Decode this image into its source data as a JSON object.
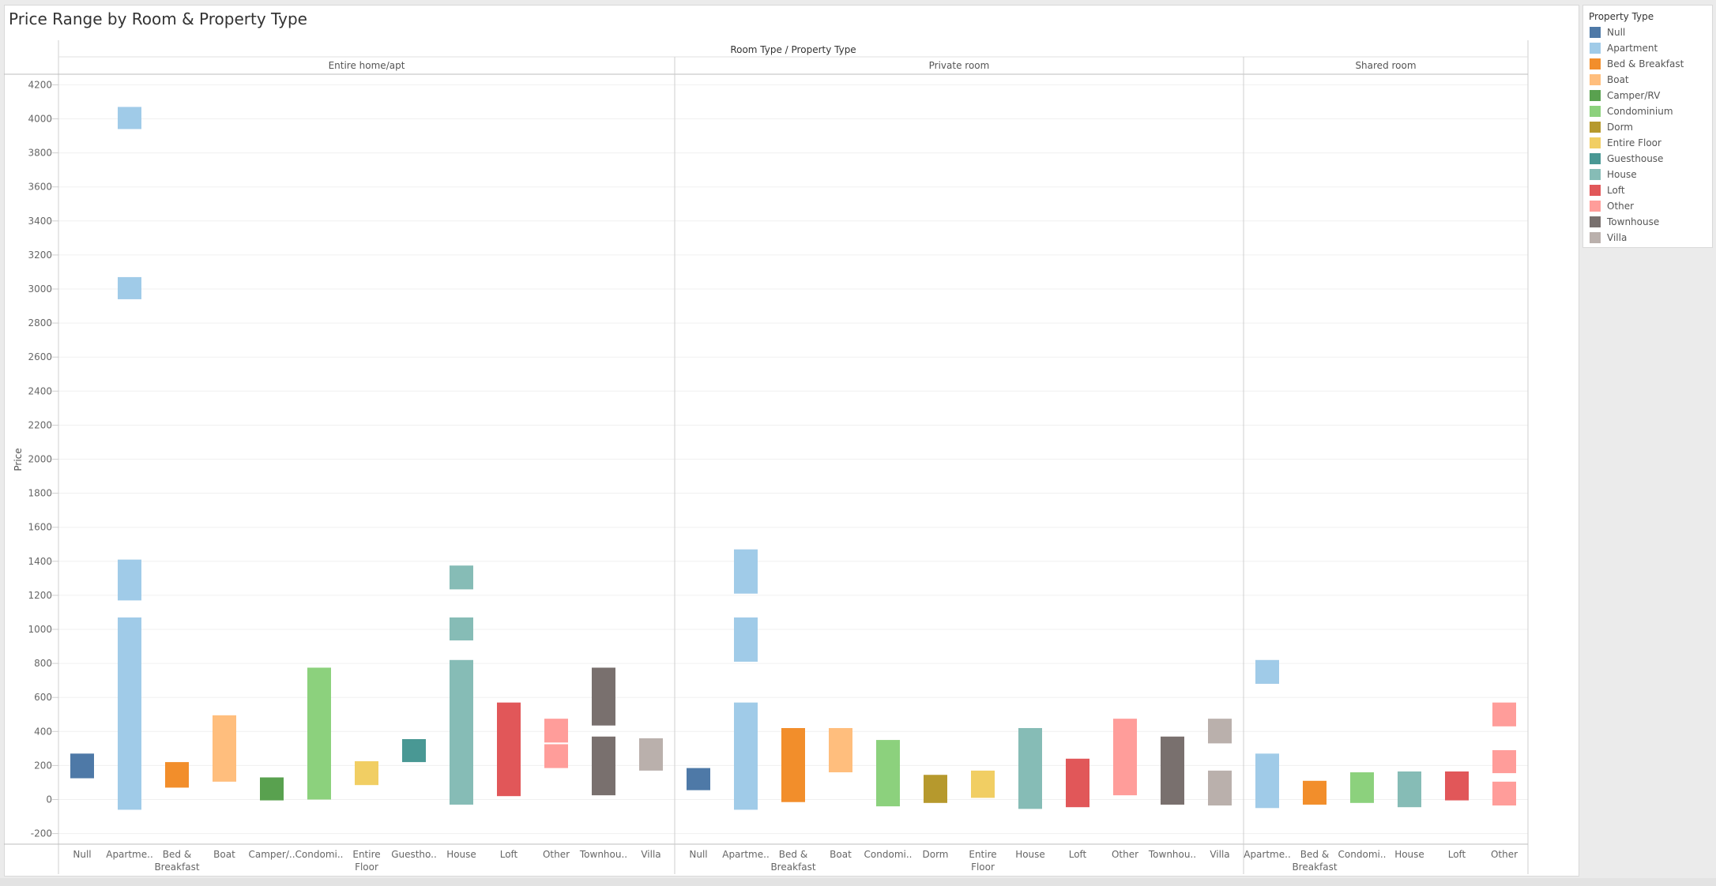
{
  "title": "Price Range by Room & Property Type",
  "legend": {
    "title": "Property Type",
    "items": [
      {
        "label": "Null",
        "color": "#4e79a7"
      },
      {
        "label": "Apartment",
        "color": "#a0cbe8"
      },
      {
        "label": "Bed & Breakfast",
        "color": "#f28e2b"
      },
      {
        "label": "Boat",
        "color": "#ffbe7d"
      },
      {
        "label": "Camper/RV",
        "color": "#59a14f"
      },
      {
        "label": "Condominium",
        "color": "#8cd17d"
      },
      {
        "label": "Dorm",
        "color": "#b6992d"
      },
      {
        "label": "Entire Floor",
        "color": "#f1ce63"
      },
      {
        "label": "Guesthouse",
        "color": "#499894"
      },
      {
        "label": "House",
        "color": "#86bcb6"
      },
      {
        "label": "Loft",
        "color": "#e15759"
      },
      {
        "label": "Other",
        "color": "#ff9d9a"
      },
      {
        "label": "Townhouse",
        "color": "#79706e"
      },
      {
        "label": "Villa",
        "color": "#bab0ac"
      }
    ]
  },
  "chart_data": {
    "type": "bar",
    "title": "Price Range by Room & Property Type",
    "header_title": "Room Type / Property Type",
    "ylabel": "Price",
    "ylim": [
      -250,
      4300
    ],
    "yticks": [
      -200,
      0,
      200,
      400,
      600,
      800,
      1000,
      1200,
      1400,
      1600,
      1800,
      2000,
      2200,
      2400,
      2600,
      2800,
      3000,
      3200,
      3400,
      3600,
      3800,
      4000,
      4200
    ],
    "grid": true,
    "legend_position": "right",
    "panels": [
      {
        "room_type": "Entire home/apt",
        "categories": [
          {
            "label": "Null",
            "ranges": [
              [
                125,
                270
              ]
            ]
          },
          {
            "label": "Apartme..",
            "ranges": [
              [
                -60,
                1070
              ],
              [
                1170,
                1410
              ],
              [
                2940,
                3070
              ],
              [
                3940,
                4070
              ]
            ]
          },
          {
            "label": "Bed & Breakfast",
            "ranges": [
              [
                70,
                220
              ]
            ]
          },
          {
            "label": "Boat",
            "ranges": [
              [
                105,
                495
              ]
            ]
          },
          {
            "label": "Camper/..",
            "ranges": [
              [
                -5,
                130
              ]
            ]
          },
          {
            "label": "Condomi..",
            "ranges": [
              [
                0,
                775
              ]
            ]
          },
          {
            "label": "Entire Floor",
            "ranges": [
              [
                85,
                225
              ]
            ]
          },
          {
            "label": "Guestho..",
            "ranges": [
              [
                220,
                355
              ]
            ]
          },
          {
            "label": "House",
            "ranges": [
              [
                -30,
                820
              ],
              [
                935,
                1070
              ],
              [
                1235,
                1375
              ]
            ]
          },
          {
            "label": "Loft",
            "ranges": [
              [
                20,
                570
              ]
            ]
          },
          {
            "label": "Other",
            "ranges": [
              [
                185,
                325
              ],
              [
                335,
                475
              ]
            ]
          },
          {
            "label": "Townhou..",
            "ranges": [
              [
                25,
                370
              ],
              [
                435,
                775
              ]
            ]
          },
          {
            "label": "Villa",
            "ranges": [
              [
                170,
                360
              ]
            ]
          }
        ]
      },
      {
        "room_type": "Private room",
        "categories": [
          {
            "label": "Null",
            "ranges": [
              [
                55,
                185
              ]
            ]
          },
          {
            "label": "Apartme..",
            "ranges": [
              [
                -60,
                570
              ],
              [
                810,
                1070
              ],
              [
                1210,
                1470
              ]
            ]
          },
          {
            "label": "Bed & Breakfast",
            "ranges": [
              [
                -15,
                420
              ]
            ]
          },
          {
            "label": "Boat",
            "ranges": [
              [
                160,
                420
              ]
            ]
          },
          {
            "label": "Condomi..",
            "ranges": [
              [
                -40,
                350
              ]
            ]
          },
          {
            "label": "Dorm",
            "ranges": [
              [
                -20,
                145
              ]
            ]
          },
          {
            "label": "Entire Floor",
            "ranges": [
              [
                10,
                170
              ]
            ]
          },
          {
            "label": "House",
            "ranges": [
              [
                -55,
                420
              ]
            ]
          },
          {
            "label": "Loft",
            "ranges": [
              [
                -45,
                240
              ]
            ]
          },
          {
            "label": "Other",
            "ranges": [
              [
                25,
                475
              ]
            ]
          },
          {
            "label": "Townhou..",
            "ranges": [
              [
                -30,
                370
              ]
            ]
          },
          {
            "label": "Villa",
            "ranges": [
              [
                -35,
                170
              ],
              [
                330,
                475
              ]
            ]
          }
        ]
      },
      {
        "room_type": "Shared room",
        "categories": [
          {
            "label": "Apartme..",
            "ranges": [
              [
                -50,
                270
              ],
              [
                680,
                820
              ]
            ]
          },
          {
            "label": "Bed & Breakfast",
            "ranges": [
              [
                -30,
                110
              ]
            ]
          },
          {
            "label": "Condomi..",
            "ranges": [
              [
                -20,
                160
              ]
            ]
          },
          {
            "label": "House",
            "ranges": [
              [
                -45,
                165
              ]
            ]
          },
          {
            "label": "Loft",
            "ranges": [
              [
                -5,
                165
              ]
            ]
          },
          {
            "label": "Other",
            "ranges": [
              [
                -35,
                105
              ],
              [
                155,
                290
              ],
              [
                430,
                570
              ]
            ]
          }
        ]
      }
    ]
  }
}
